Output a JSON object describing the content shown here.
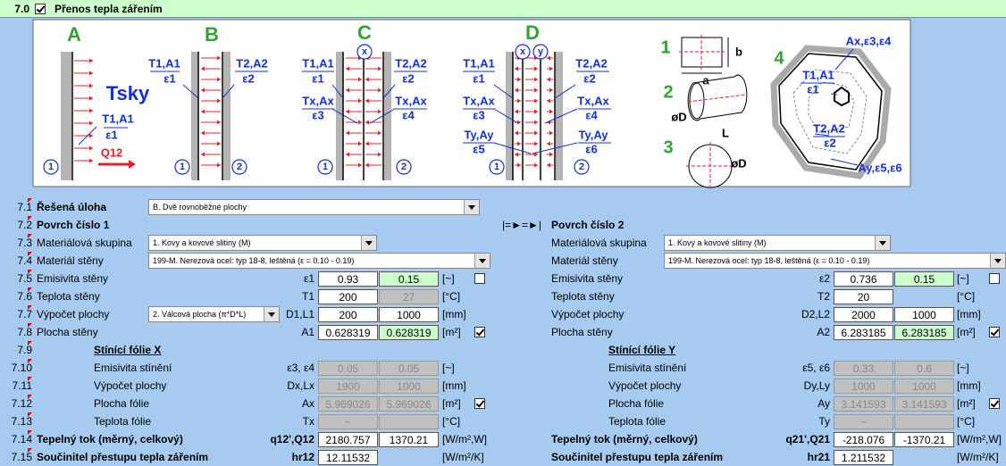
{
  "header": {
    "number": "7.0",
    "title": "Přenos tepla zářením",
    "checked": true
  },
  "diagram": {
    "labels": [
      "A",
      "Tsky",
      "T1,A1",
      "ε1",
      "Q12",
      "1",
      "B",
      "T1,A1",
      "ε1",
      "T2,A2",
      "ε2",
      "1",
      "2",
      "C",
      "x",
      "T1,A1",
      "ε1",
      "T2,A2",
      "ε2",
      "Tx,Ax",
      "ε3",
      "Tx,Ax",
      "ε4",
      "1",
      "2",
      "D",
      "x",
      "y",
      "T1,A1",
      "ε1",
      "T2,A2",
      "ε2",
      "Tx,Ax",
      "ε3",
      "Tx,Ax",
      "ε4",
      "Ty,Ay",
      "ε5",
      "Ty,Ay",
      "ε6",
      "1",
      "2",
      "1",
      "b",
      "a",
      "2",
      "øD",
      "L",
      "3",
      "øD",
      "4",
      "Ax,ε3,ε4",
      "T1,A1",
      "ε1",
      "T2,A2",
      "ε2",
      "Ay,ε5,ε6"
    ]
  },
  "rows": [
    {
      "number": "7.1",
      "left": {
        "label": "Řešená úloha",
        "select": "B. Dvě rovnoběžné plochy"
      }
    },
    {
      "number": "7.2",
      "left": {
        "label": "Povrch číslo 1"
      },
      "middle": "|=►=►|",
      "right": {
        "label": "Povrch číslo 2"
      }
    },
    {
      "number": "7.3",
      "left": {
        "label": "Materiálová skupina",
        "select": "1. Kovy a kovové slitiny (M)"
      },
      "right": {
        "label": "Materiálová skupina",
        "select": "1. Kovy a kovové slitiny (M)"
      }
    },
    {
      "number": "7.4",
      "left": {
        "label": "Materiál stěny",
        "select": "199-M. Nerezová ocel: typ 18-8, leštěná (ε = 0.10 - 0.19)"
      },
      "right": {
        "label": "Materiál stěny",
        "select": "199-M. Nerezová ocel: typ 18-8, leštěná (ε = 0.10 - 0.19)"
      }
    },
    {
      "number": "7.5",
      "left": {
        "label": "Emisivita stěny",
        "symbol": "ε1",
        "values": [
          0.93,
          0.15
        ],
        "unit": "[~]",
        "checkbox": false
      },
      "right": {
        "label": "Emisivita stěny",
        "symbol": "ε2",
        "values": [
          0.736,
          0.15
        ],
        "unit": "[~]",
        "checkbox": false
      }
    },
    {
      "number": "7.6",
      "left": {
        "label": "Teplota stěny",
        "symbol": "T1",
        "values": [
          200,
          27
        ],
        "unit": "[°C]"
      },
      "right": {
        "label": "Teplota stěny",
        "symbol": "T2",
        "values": [
          20
        ],
        "unit": "[°C]"
      }
    },
    {
      "number": "7.7",
      "left": {
        "label": "Výpočet plochy",
        "select": "2. Válcová plocha (π*D*L)",
        "symbol": "D1,L1",
        "values": [
          200,
          1000
        ],
        "unit": "[mm]"
      },
      "right": {
        "label": "Výpočet plochy",
        "symbol": "D2,L2",
        "values": [
          2000,
          1000
        ],
        "unit": "[mm]"
      }
    },
    {
      "number": "7.8",
      "left": {
        "label": "Plocha stěny",
        "symbol": "A1",
        "values": [
          0.628319,
          0.628319
        ],
        "unit": "[m²]",
        "checkbox": true
      },
      "right": {
        "label": "Plocha stěny",
        "symbol": "A2",
        "values": [
          6.283185,
          6.283185
        ],
        "unit": "[m²]",
        "checkbox": true
      }
    },
    {
      "number": "7.9",
      "left": {
        "label": "Stínící fólie X"
      },
      "right": {
        "label": "Stínící fólie Y"
      }
    },
    {
      "number": "7.10",
      "left": {
        "label": "Emisivita stínění",
        "symbol": "ε3, ε4",
        "values": [
          0.05,
          0.05
        ],
        "unit": "[~]"
      },
      "right": {
        "label": "Emisivita stínění",
        "symbol": "ε5, ε6",
        "values": [
          0.33,
          0.6
        ],
        "unit": "[~]"
      }
    },
    {
      "number": "7.11",
      "left": {
        "label": "Výpočet plochy",
        "symbol": "Dx,Lx",
        "values": [
          1900,
          1000
        ],
        "unit": "[mm]"
      },
      "right": {
        "label": "Výpočet plochy",
        "symbol": "Dy,Ly",
        "values": [
          1000,
          1000
        ],
        "unit": "[mm]"
      }
    },
    {
      "number": "7.12",
      "left": {
        "label": "Plocha fólie",
        "symbol": "Ax",
        "values": [
          5.969026,
          5.969026
        ],
        "unit": "[m²]",
        "checkbox": true
      },
      "right": {
        "label": "Plocha fólie",
        "symbol": "Ay",
        "values": [
          3.141593,
          3.141593
        ],
        "unit": "[m²]",
        "checkbox": true
      }
    },
    {
      "number": "7.13",
      "left": {
        "label": "Teplota fólie",
        "symbol": "Tx",
        "values": [
          "~"
        ],
        "unit": "[°C]"
      },
      "right": {
        "label": "Teplota fólie",
        "symbol": "Ty",
        "values": [
          "~"
        ],
        "unit": "[°C]"
      }
    },
    {
      "number": "7.14",
      "left": {
        "label": "Tepelný tok (měrný, celkový)",
        "symbol": "q12',Q12",
        "values": [
          2180.757,
          1370.21
        ],
        "unit": "[W/m²,W]"
      },
      "right": {
        "label": "Tepelný tok (měrný, celkový)",
        "symbol": "q21',Q21",
        "values": [
          -218.076,
          -1370.21
        ],
        "unit": "[W/m²,W]"
      }
    },
    {
      "number": "7.15",
      "left": {
        "label": "Součinitel přestupu tepla zářením",
        "symbol": "hr12",
        "values": [
          12.11532
        ],
        "unit": "[W/m²/K]"
      },
      "right": {
        "label": "Součinitel přestupu tepla zářením",
        "symbol": "hr21",
        "values": [
          1.211532
        ],
        "unit": "[W/m²/K]"
      }
    }
  ]
}
